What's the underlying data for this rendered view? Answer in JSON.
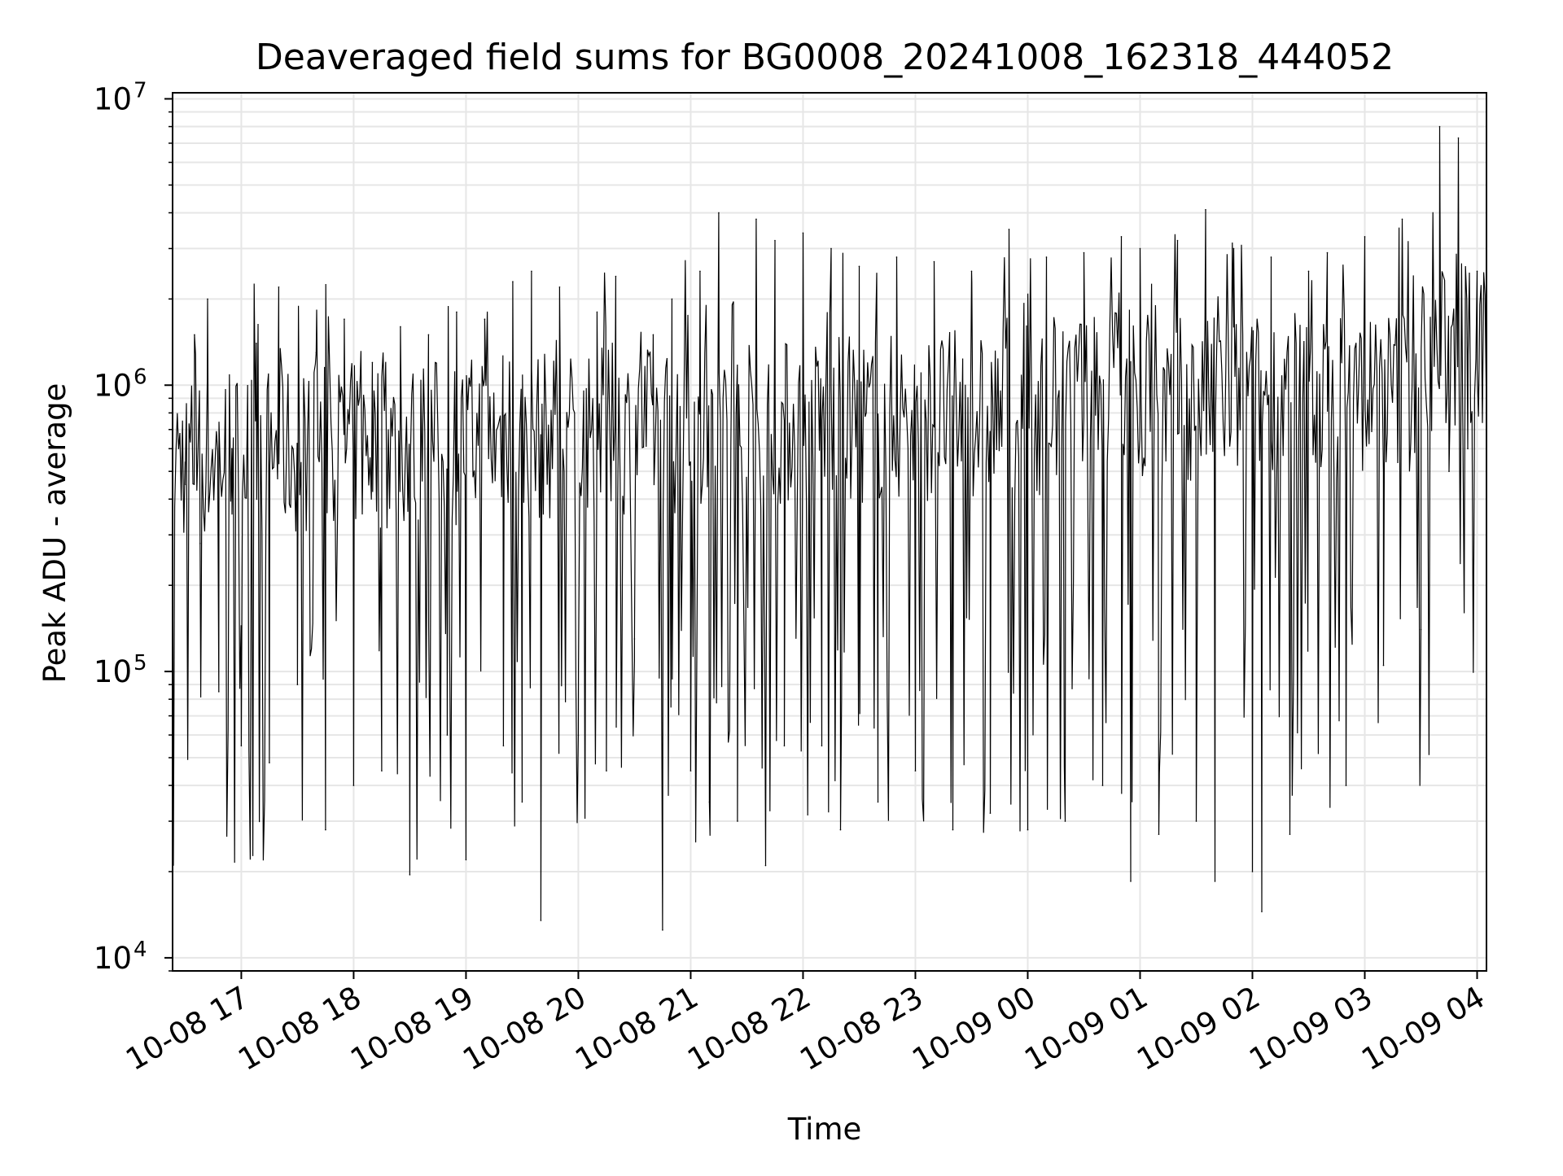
{
  "chart_data": {
    "type": "line",
    "title": "Deaveraged field sums for BG0008_20241008_162318_444052",
    "xlabel": "Time",
    "ylabel": "Peak ADU - average",
    "y_scale": "log",
    "ylim": [
      9000,
      10500000
    ],
    "xlim": [
      "2024-10-08 16:23:18",
      "2024-10-09 04:05:00"
    ],
    "grid": true,
    "legend": "none",
    "line_color": "#000000",
    "grid_color": "#e6e6e6",
    "x_ticks": [
      {
        "value": "2024-10-08 17:00",
        "label": "10-08 17"
      },
      {
        "value": "2024-10-08 18:00",
        "label": "10-08 18"
      },
      {
        "value": "2024-10-08 19:00",
        "label": "10-08 19"
      },
      {
        "value": "2024-10-08 20:00",
        "label": "10-08 20"
      },
      {
        "value": "2024-10-08 21:00",
        "label": "10-08 21"
      },
      {
        "value": "2024-10-08 22:00",
        "label": "10-08 22"
      },
      {
        "value": "2024-10-08 23:00",
        "label": "10-08 23"
      },
      {
        "value": "2024-10-09 00:00",
        "label": "10-09 00"
      },
      {
        "value": "2024-10-09 01:00",
        "label": "10-09 01"
      },
      {
        "value": "2024-10-09 02:00",
        "label": "10-09 02"
      },
      {
        "value": "2024-10-09 03:00",
        "label": "10-09 03"
      },
      {
        "value": "2024-10-09 04:00",
        "label": "10-09 04"
      }
    ],
    "y_ticks": [
      {
        "value": 10000,
        "base": "10",
        "exp": "4"
      },
      {
        "value": 100000,
        "base": "10",
        "exp": "5"
      },
      {
        "value": 1000000,
        "base": "10",
        "exp": "6"
      },
      {
        "value": 10000000,
        "base": "10",
        "exp": "7"
      }
    ],
    "series": [
      {
        "values": [
          [
            "2024-10-08 16:23:18",
            600000
          ],
          [
            "2024-10-08 16:30",
            450000
          ],
          [
            "2024-10-08 16:35",
            1500000
          ],
          [
            "2024-10-08 16:38",
            280000
          ],
          [
            "2024-10-08 16:42",
            2000000
          ],
          [
            "2024-10-08 16:48",
            85000
          ],
          [
            "2024-10-08 16:55",
            600000
          ],
          [
            "2024-10-08 17:00",
            55000
          ],
          [
            "2024-10-08 17:08",
            1400000
          ],
          [
            "2024-10-08 17:15",
            48000
          ],
          [
            "2024-10-08 17:20",
            2200000
          ],
          [
            "2024-10-08 17:30",
            90000
          ],
          [
            "2024-10-08 17:40",
            1300000
          ],
          [
            "2024-10-08 17:45",
            28000
          ],
          [
            "2024-10-08 17:55",
            1700000
          ],
          [
            "2024-10-08 18:00",
            40000
          ],
          [
            "2024-10-08 18:10",
            1200000
          ],
          [
            "2024-10-08 18:15",
            45000
          ],
          [
            "2024-10-08 18:25",
            1600000
          ],
          [
            "2024-10-08 18:30",
            19500
          ],
          [
            "2024-10-08 18:40",
            1500000
          ],
          [
            "2024-10-08 18:50",
            60000
          ],
          [
            "2024-10-08 18:55",
            1800000
          ],
          [
            "2024-10-08 19:00",
            22000
          ],
          [
            "2024-10-08 19:10",
            1700000
          ],
          [
            "2024-10-08 19:20",
            55000
          ],
          [
            "2024-10-08 19:25",
            2300000
          ],
          [
            "2024-10-08 19:30",
            35000
          ],
          [
            "2024-10-08 19:35",
            2500000
          ],
          [
            "2024-10-08 19:40",
            13500
          ],
          [
            "2024-10-08 19:50",
            2200000
          ],
          [
            "2024-10-08 20:00",
            60000
          ],
          [
            "2024-10-08 20:10",
            1800000
          ],
          [
            "2024-10-08 20:15",
            45000
          ],
          [
            "2024-10-08 20:20",
            2400000
          ],
          [
            "2024-10-08 20:30",
            130000
          ],
          [
            "2024-10-08 20:40",
            1500000
          ],
          [
            "2024-10-08 20:45",
            12500
          ],
          [
            "2024-10-08 20:50",
            2000000
          ],
          [
            "2024-10-08 21:00",
            45000
          ],
          [
            "2024-10-08 21:05",
            2500000
          ],
          [
            "2024-10-08 21:10",
            35000
          ],
          [
            "2024-10-08 21:15",
            4000000
          ],
          [
            "2024-10-08 21:25",
            30000
          ],
          [
            "2024-10-08 21:35",
            3800000
          ],
          [
            "2024-10-08 21:40",
            21000
          ],
          [
            "2024-10-08 21:45",
            3200000
          ],
          [
            "2024-10-08 21:50",
            55000
          ],
          [
            "2024-10-08 22:00",
            3400000
          ],
          [
            "2024-10-08 22:10",
            55000
          ],
          [
            "2024-10-08 22:15",
            3000000
          ],
          [
            "2024-10-08 22:20",
            28000
          ],
          [
            "2024-10-08 22:30",
            2600000
          ],
          [
            "2024-10-08 22:40",
            35000
          ],
          [
            "2024-10-08 22:50",
            2800000
          ],
          [
            "2024-10-08 23:00",
            45000
          ],
          [
            "2024-10-08 23:10",
            2700000
          ],
          [
            "2024-10-08 23:20",
            28000
          ],
          [
            "2024-10-08 23:30",
            2500000
          ],
          [
            "2024-10-08 23:40",
            32000
          ],
          [
            "2024-10-08 23:50",
            3500000
          ],
          [
            "2024-10-09 00:00",
            28000
          ],
          [
            "2024-10-09 00:10",
            2800000
          ],
          [
            "2024-10-09 00:20",
            30000
          ],
          [
            "2024-10-09 00:30",
            2900000
          ],
          [
            "2024-10-09 00:40",
            40000
          ],
          [
            "2024-10-09 00:50",
            3300000
          ],
          [
            "2024-10-09 00:55",
            18500
          ],
          [
            "2024-10-09 01:00",
            3000000
          ],
          [
            "2024-10-09 01:10",
            27000
          ],
          [
            "2024-10-09 01:20",
            3200000
          ],
          [
            "2024-10-09 01:30",
            30000
          ],
          [
            "2024-10-09 01:35",
            4100000
          ],
          [
            "2024-10-09 01:40",
            18500
          ],
          [
            "2024-10-09 01:50",
            3000000
          ],
          [
            "2024-10-09 02:00",
            20000
          ],
          [
            "2024-10-09 02:05",
            14500
          ],
          [
            "2024-10-09 02:10",
            2800000
          ],
          [
            "2024-10-09 02:20",
            27000
          ],
          [
            "2024-10-09 02:30",
            2500000
          ],
          [
            "2024-10-09 02:40",
            2900000
          ],
          [
            "2024-10-09 02:50",
            40000
          ],
          [
            "2024-10-09 03:00",
            3300000
          ],
          [
            "2024-10-09 03:10",
            105000
          ],
          [
            "2024-10-09 03:20",
            3800000
          ],
          [
            "2024-10-09 03:30",
            140000
          ],
          [
            "2024-10-09 03:40",
            8000000
          ],
          [
            "2024-10-09 03:45",
            500000
          ],
          [
            "2024-10-09 03:50",
            7300000
          ],
          [
            "2024-10-09 03:55",
            600000
          ],
          [
            "2024-10-09 04:00",
            2500000
          ],
          [
            "2024-10-09 04:05",
            800000
          ]
        ]
      }
    ]
  }
}
